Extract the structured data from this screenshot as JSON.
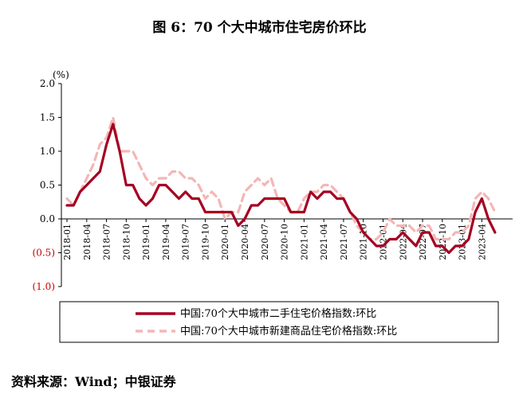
{
  "title": "图 6：70 个大中城市住宅房价环比",
  "source": "资料来源：Wind；中银证券",
  "chart_data": {
    "type": "line",
    "title": "图 6：70 个大中城市住宅房价环比",
    "ylabel": "(%)",
    "ylim": [
      -1.0,
      2.0
    ],
    "yticks": [
      2.0,
      1.5,
      1.0,
      0.5,
      0.0,
      -0.5,
      -1.0
    ],
    "ytick_labels": [
      "2.0",
      "1.5",
      "1.0",
      "0.5",
      "0.0",
      "(0.5)",
      "(1.0)"
    ],
    "xticks": [
      "2018-01",
      "2018-04",
      "2018-07",
      "2018-10",
      "2019-01",
      "2019-04",
      "2019-07",
      "2019-10",
      "2020-01",
      "2020-04",
      "2020-07",
      "2020-10",
      "2021-01",
      "2021-04",
      "2021-07",
      "2021-10",
      "2022-01",
      "2022-04",
      "2022-07",
      "2022-10",
      "2023-01",
      "2023-04"
    ],
    "grid": false,
    "legend_position": "bottom",
    "colors": {
      "negative_tick": "#cc0000",
      "second_hand": "#a50021",
      "new_home": "#f4b6b6"
    },
    "series": [
      {
        "name": "中国:70个大中城市二手住宅价格指数:环比",
        "style": "solid",
        "values": [
          0.2,
          0.2,
          0.4,
          0.5,
          0.6,
          0.7,
          1.1,
          1.4,
          1.0,
          0.5,
          0.5,
          0.3,
          0.2,
          0.3,
          0.5,
          0.5,
          0.4,
          0.3,
          0.4,
          0.3,
          0.3,
          0.1,
          0.1,
          0.1,
          0.1,
          0.1,
          -0.1,
          0.0,
          0.2,
          0.2,
          0.3,
          0.3,
          0.3,
          0.3,
          0.1,
          0.1,
          0.1,
          0.4,
          0.3,
          0.4,
          0.4,
          0.3,
          0.3,
          0.1,
          0.0,
          -0.2,
          -0.3,
          -0.4,
          -0.4,
          -0.3,
          -0.3,
          -0.2,
          -0.3,
          -0.4,
          -0.2,
          -0.2,
          -0.4,
          -0.4,
          -0.5,
          -0.4,
          -0.4,
          -0.3,
          0.1,
          0.3,
          0.0,
          -0.2
        ]
      },
      {
        "name": "中国:70个大中城市新建商品住宅价格指数:环比",
        "style": "dashed",
        "values": [
          0.3,
          0.2,
          0.4,
          0.6,
          0.8,
          1.1,
          1.2,
          1.5,
          1.0,
          1.0,
          1.0,
          0.8,
          0.6,
          0.5,
          0.6,
          0.6,
          0.7,
          0.7,
          0.6,
          0.6,
          0.5,
          0.3,
          0.4,
          0.3,
          0.0,
          0.1,
          0.1,
          0.4,
          0.5,
          0.6,
          0.5,
          0.6,
          0.3,
          0.2,
          0.1,
          0.1,
          0.3,
          0.4,
          0.4,
          0.5,
          0.5,
          0.4,
          0.3,
          0.1,
          -0.1,
          -0.2,
          -0.3,
          -0.3,
          -0.2,
          0.0,
          -0.1,
          -0.1,
          -0.1,
          -0.2,
          -0.1,
          -0.1,
          -0.3,
          -0.3,
          -0.3,
          -0.2,
          -0.2,
          -0.1,
          0.3,
          0.4,
          0.3,
          0.1
        ]
      }
    ]
  }
}
